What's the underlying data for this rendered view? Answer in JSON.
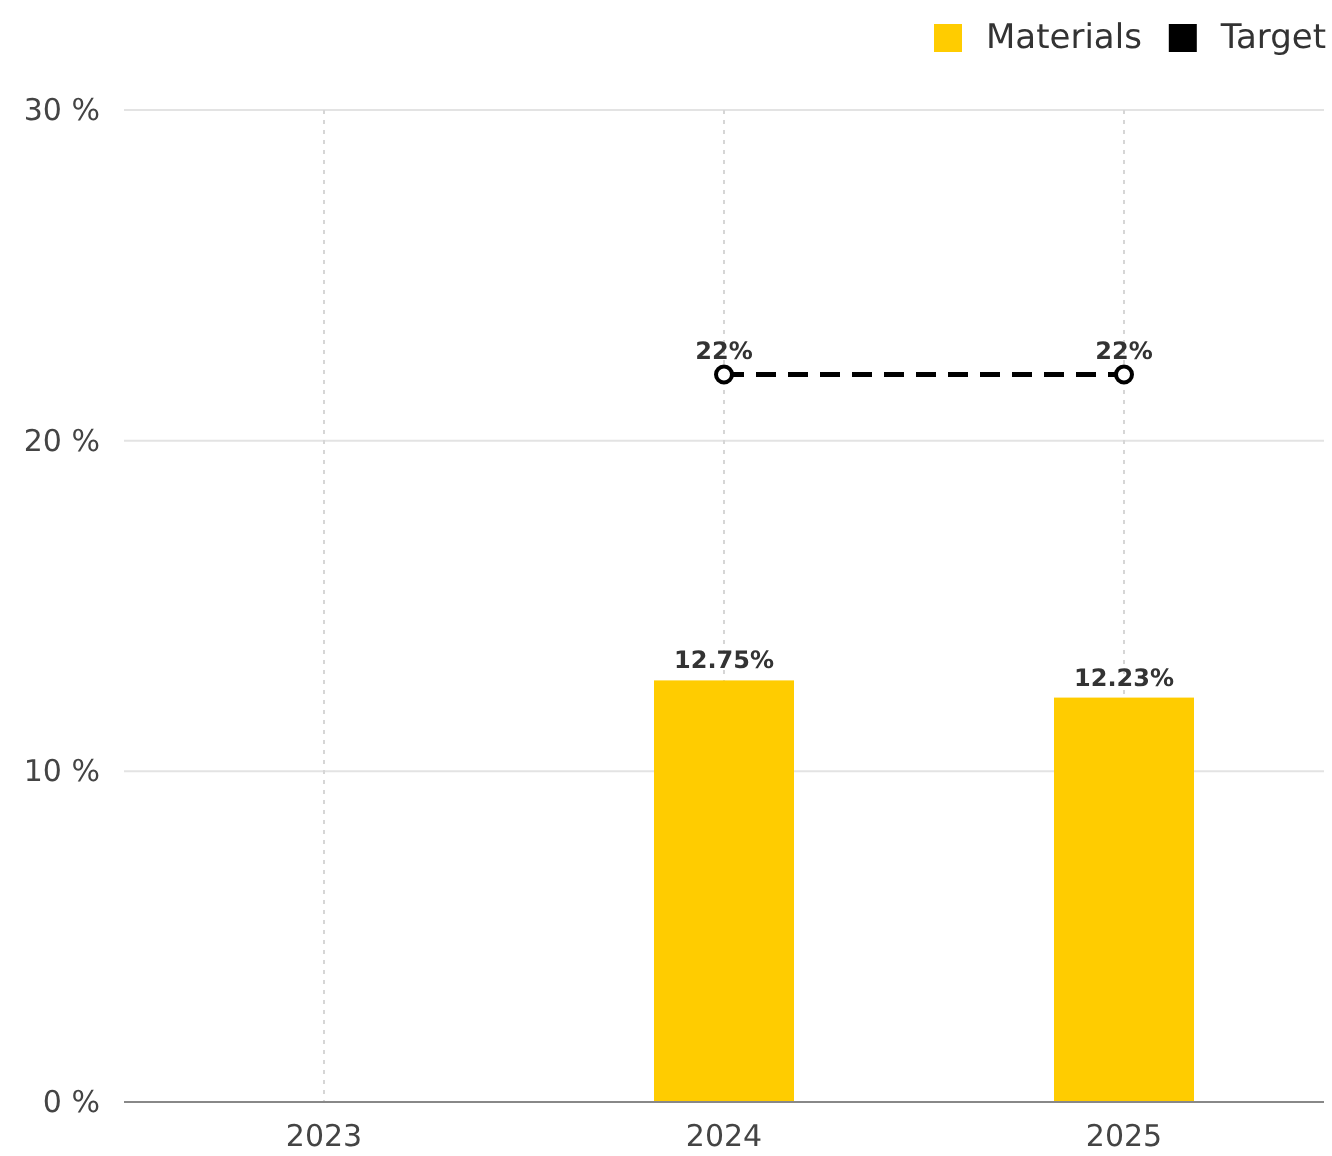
{
  "chart_data": {
    "type": "bar",
    "categories": [
      "2023",
      "2024",
      "2025"
    ],
    "series": [
      {
        "name": "Materials",
        "color": "#ffcc00",
        "values": [
          null,
          12.75,
          12.23
        ],
        "value_labels": [
          null,
          "12.75%",
          "12.23%"
        ]
      },
      {
        "name": "Target",
        "type": "line",
        "color": "#000000",
        "values": [
          null,
          22,
          22
        ],
        "value_labels": [
          null,
          "22%",
          "22%"
        ],
        "marker": "circle",
        "line_style": "dashed"
      }
    ],
    "ylim": [
      0,
      30
    ],
    "yticks": [
      {
        "value": 0,
        "label": "0 %"
      },
      {
        "value": 10,
        "label": "10 %"
      },
      {
        "value": 20,
        "label": "20 %"
      },
      {
        "value": 30,
        "label": "30 %"
      }
    ],
    "grid": true,
    "legend": "top right"
  }
}
